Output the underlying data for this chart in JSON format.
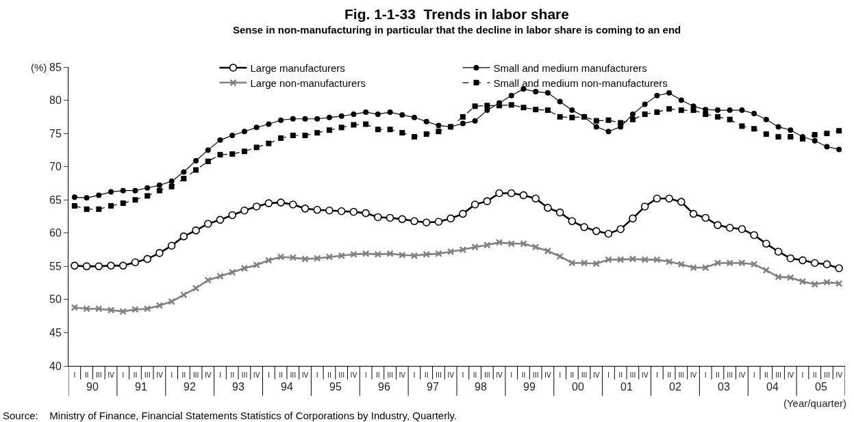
{
  "chart_data": {
    "type": "line",
    "title": "Fig. 1-1-33  Trends in labor share",
    "subtitle": "Sense in non-manufacturing in particular that the decline in labor share is coming to an end",
    "xlabel": "(Year/quarter)",
    "ylabel": "(%)",
    "annotations": [
      "90",
      "91",
      "92",
      "93",
      "94",
      "95",
      "96",
      "97",
      "98",
      "99",
      "00",
      "01",
      "02",
      "03",
      "04",
      "05",
      "Source:    Ministry of Finance, Financial Statements Statistics of Corporations by Industry, Quarterly."
    ],
    "categories": [
      "I",
      "II",
      "III",
      "IV",
      "I",
      "II",
      "III",
      "IV",
      "I",
      "II",
      "III",
      "IV",
      "I",
      "II",
      "III",
      "IV",
      "I",
      "II",
      "III",
      "IV",
      "I",
      "II",
      "III",
      "IV",
      "I",
      "II",
      "III",
      "IV",
      "I",
      "II",
      "III",
      "IV",
      "I",
      "II",
      "III",
      "IV",
      "I",
      "II",
      "III",
      "IV",
      "I",
      "II",
      "III",
      "IV",
      "I",
      "II",
      "III",
      "IV",
      "I",
      "II",
      "III",
      "IV",
      "I",
      "II",
      "III",
      "IV",
      "I",
      "II",
      "III",
      "IV",
      "I",
      "II",
      "III",
      "IV"
    ],
    "series": [
      {
        "name": "Large manufacturers",
        "color": "#000000",
        "marker": "circle-open",
        "line_style": "solid",
        "values": [
          55.1,
          55.0,
          55.0,
          55.1,
          55.1,
          55.6,
          56.1,
          57.0,
          58.1,
          59.5,
          60.4,
          61.4,
          62.0,
          62.7,
          63.4,
          64.0,
          64.5,
          64.6,
          64.3,
          63.7,
          63.5,
          63.4,
          63.3,
          63.2,
          63.0,
          62.4,
          62.3,
          62.1,
          61.8,
          61.6,
          61.7,
          62.2,
          62.9,
          64.3,
          64.8,
          66.0,
          66.0,
          65.7,
          65.2,
          63.8,
          63.1,
          61.8,
          60.9,
          60.3,
          59.9,
          60.6,
          62.2,
          64.0,
          65.2,
          65.2,
          64.7,
          62.9,
          62.3,
          61.2,
          60.8,
          60.6,
          59.7,
          58.4,
          57.2,
          56.2,
          55.9,
          55.5,
          55.3,
          54.7
        ]
      },
      {
        "name": "Small and medium manufacturers",
        "color": "#000000",
        "marker": "circle",
        "line_style": "solid",
        "values": [
          65.4,
          65.3,
          65.7,
          66.2,
          66.4,
          66.4,
          66.8,
          67.2,
          67.8,
          69.2,
          70.9,
          72.5,
          74.0,
          74.7,
          75.3,
          75.9,
          76.4,
          77.0,
          77.2,
          77.2,
          77.2,
          77.4,
          77.6,
          77.9,
          78.2,
          77.9,
          78.2,
          77.8,
          77.4,
          76.8,
          76.2,
          76.0,
          76.5,
          76.9,
          78.5,
          79.6,
          80.7,
          81.7,
          81.3,
          81.1,
          79.8,
          78.5,
          77.5,
          76.0,
          75.3,
          76.0,
          77.9,
          79.4,
          80.7,
          81.1,
          80.0,
          79.1,
          78.6,
          78.5,
          78.5,
          78.5,
          78.0,
          77.1,
          76.0,
          75.5,
          74.5,
          73.9,
          73.0,
          72.6
        ]
      },
      {
        "name": "Large non-manufacturers",
        "color": "#808080",
        "marker": "cross",
        "line_style": "solid",
        "values": [
          48.8,
          48.6,
          48.6,
          48.4,
          48.2,
          48.5,
          48.6,
          49.1,
          49.7,
          50.7,
          51.7,
          52.9,
          53.5,
          54.1,
          54.7,
          55.2,
          55.9,
          56.4,
          56.3,
          56.1,
          56.2,
          56.4,
          56.6,
          56.8,
          56.9,
          56.8,
          56.9,
          56.7,
          56.6,
          56.8,
          56.9,
          57.2,
          57.5,
          57.9,
          58.2,
          58.6,
          58.4,
          58.4,
          57.9,
          57.3,
          56.5,
          55.5,
          55.5,
          55.4,
          56.0,
          56.0,
          56.1,
          56.0,
          56.0,
          55.7,
          55.3,
          54.8,
          54.8,
          55.5,
          55.5,
          55.5,
          55.3,
          54.4,
          53.4,
          53.3,
          52.7,
          52.3,
          52.6,
          52.4
        ]
      },
      {
        "name": "Small and medium non-manufacturers",
        "color": "#000000",
        "marker": "square",
        "line_style": "dashed",
        "values": [
          64.1,
          63.6,
          63.6,
          64.1,
          64.5,
          65.0,
          65.6,
          66.4,
          67.0,
          68.2,
          69.5,
          70.8,
          71.8,
          71.9,
          72.3,
          72.9,
          73.5,
          74.3,
          74.7,
          74.7,
          75.1,
          75.5,
          75.9,
          76.3,
          76.4,
          75.6,
          75.6,
          75.1,
          74.5,
          74.9,
          75.3,
          76.0,
          77.5,
          79.1,
          79.2,
          79.2,
          79.3,
          78.9,
          78.6,
          78.5,
          77.5,
          77.4,
          77.5,
          76.9,
          77.0,
          76.6,
          77.1,
          77.9,
          78.2,
          78.7,
          78.5,
          78.5,
          77.9,
          77.5,
          77.1,
          76.1,
          75.7,
          74.9,
          74.5,
          74.5,
          74.2,
          74.8,
          75.0,
          75.4
        ]
      }
    ],
    "ylim": [
      40,
      85
    ],
    "yticks": [
      40,
      45,
      50,
      55,
      60,
      65,
      70,
      75,
      80,
      85
    ],
    "grid": false,
    "legend": "top"
  }
}
